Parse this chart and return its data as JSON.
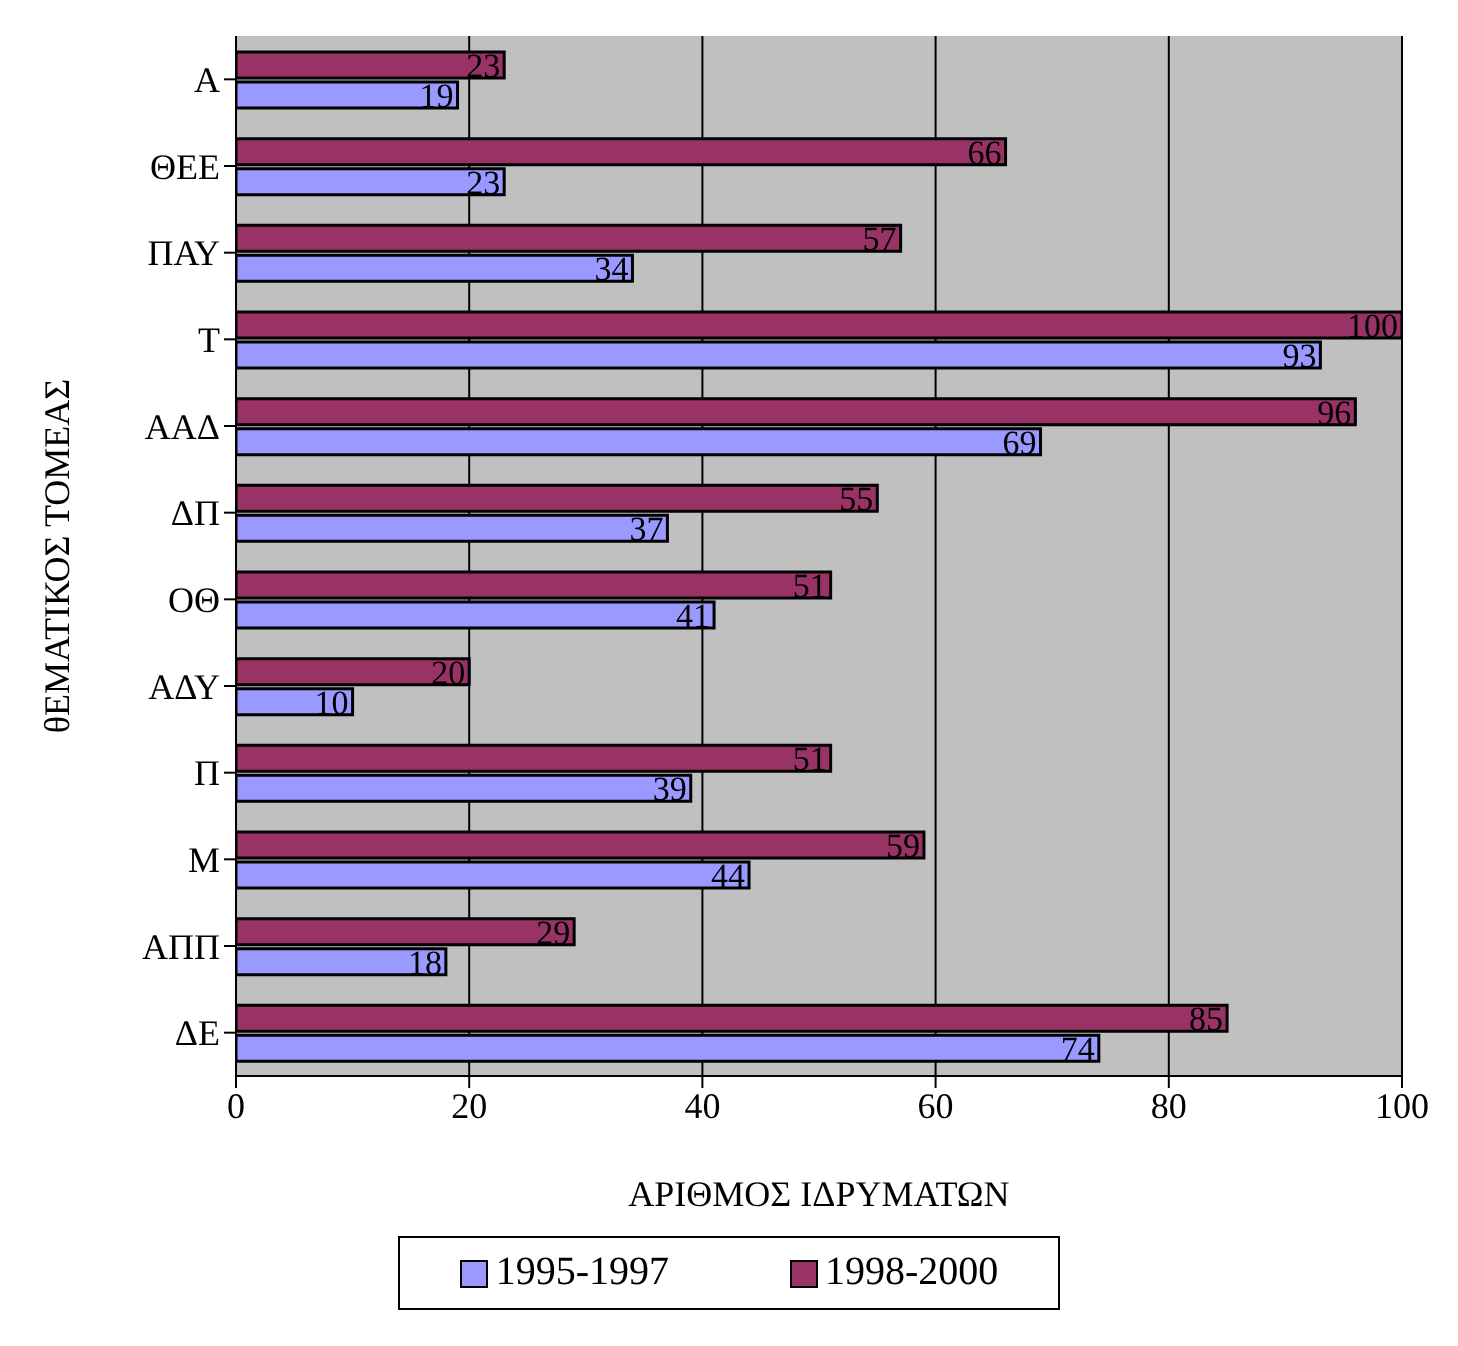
{
  "chart_data": {
    "type": "bar",
    "orientation": "horizontal",
    "xlabel": "ΑΡΙΘΜΟΣ ΙΔΡΥΜΑΤΩΝ",
    "ylabel": "θΕΜΑΤΙΚΟΣ ΤΟΜΕΑΣ",
    "categories": [
      "Α",
      "ΘΕΕ",
      "ΠΑΥ",
      "Τ",
      "ΑΑΔ",
      "ΔΠ",
      "ΟΘ",
      "ΑΔΥ",
      "Π",
      "Μ",
      "ΑΠΠ",
      "ΔΕ"
    ],
    "series": [
      {
        "name": "1995-1997",
        "color": "#9999ff",
        "values": [
          19,
          23,
          34,
          93,
          69,
          37,
          41,
          10,
          39,
          44,
          18,
          74
        ]
      },
      {
        "name": "1998-2000",
        "color": "#993366",
        "values": [
          23,
          66,
          57,
          100,
          96,
          55,
          51,
          20,
          51,
          59,
          29,
          85
        ]
      }
    ],
    "xlim": [
      0,
      100
    ],
    "xticks": [
      0,
      20,
      40,
      60,
      80,
      100
    ],
    "grid": "x",
    "legend": "bottom",
    "data_labels": true
  }
}
